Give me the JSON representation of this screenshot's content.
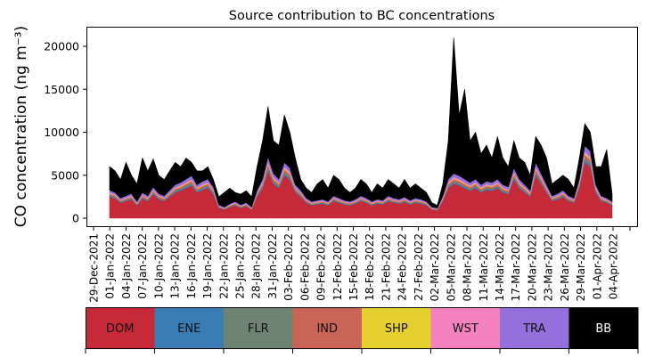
{
  "chart_data": {
    "type": "area",
    "stacked": true,
    "title": "Source contribution to BC concentrations",
    "ylabel": "CO concentration (ng m⁻³)",
    "xlabel": "",
    "ylim": [
      -1000,
      22500
    ],
    "yticks": [
      0,
      5000,
      10000,
      15000,
      20000
    ],
    "x_start_date": "01-Jan-2022",
    "x_end_date": "03-Apr-2022",
    "x_resolution": "daily",
    "xtick_labels": [
      "29-Dec-2021",
      "01-Jan-2022",
      "04-Jan-2022",
      "07-Jan-2022",
      "10-Jan-2022",
      "13-Jan-2022",
      "16-Jan-2022",
      "19-Jan-2022",
      "22-Jan-2022",
      "25-Jan-2022",
      "28-Jan-2022",
      "31-Jan-2022",
      "03-Feb-2022",
      "06-Feb-2022",
      "09-Feb-2022",
      "12-Feb-2022",
      "15-Feb-2022",
      "18-Feb-2022",
      "21-Feb-2022",
      "24-Feb-2022",
      "27-Feb-2022",
      "02-Mar-2022",
      "05-Mar-2022",
      "08-Mar-2022",
      "11-Mar-2022",
      "14-Mar-2022",
      "17-Mar-2022",
      "20-Mar-2022",
      "23-Mar-2022",
      "26-Mar-2022",
      "29-Mar-2022",
      "01-Apr-2022",
      "04-Apr-2022"
    ],
    "grid": false,
    "legend_placement": "bottom colorbar",
    "series": [
      {
        "name": "DOM",
        "color": "#c62a39",
        "values": [
          2500,
          2300,
          1800,
          2000,
          2200,
          1500,
          2300,
          2000,
          2800,
          2200,
          2000,
          2500,
          3000,
          3200,
          3500,
          3800,
          3000,
          3300,
          3500,
          2800,
          1200,
          1000,
          1300,
          1500,
          1200,
          1400,
          1000,
          2500,
          3500,
          5500,
          4000,
          3500,
          5000,
          4500,
          3000,
          2500,
          1800,
          1500,
          1600,
          1700,
          1500,
          2000,
          1800,
          1600,
          1500,
          1700,
          2000,
          1800,
          1500,
          1700,
          1600,
          2000,
          1800,
          1700,
          1900,
          1600,
          1800,
          1700,
          1500,
          1000,
          900,
          2000,
          3500,
          4000,
          3800,
          3500,
          3200,
          3500,
          3000,
          3300,
          3200,
          3500,
          3000,
          2800,
          4500,
          3500,
          3000,
          2500,
          5000,
          4000,
          3000,
          2000,
          2200,
          2500,
          2000,
          1800,
          3500,
          6500,
          6000,
          3000,
          2000,
          1800,
          1500
        ]
      },
      {
        "name": "ENE",
        "color": "#3a7cb4",
        "values": [
          100,
          92,
          72,
          80,
          88,
          60,
          92,
          80,
          112,
          88,
          80,
          100,
          120,
          128,
          140,
          152,
          120,
          132,
          140,
          112,
          48,
          40,
          52,
          60,
          48,
          56,
          40,
          100,
          140,
          220,
          160,
          140,
          200,
          180,
          120,
          100,
          72,
          60,
          64,
          68,
          60,
          80,
          72,
          64,
          60,
          68,
          80,
          72,
          60,
          68,
          64,
          80,
          72,
          68,
          76,
          64,
          72,
          68,
          60,
          40,
          36,
          80,
          140,
          160,
          152,
          140,
          128,
          140,
          120,
          132,
          128,
          140,
          120,
          112,
          180,
          140,
          120,
          100,
          200,
          160,
          120,
          80,
          88,
          100,
          80,
          72,
          140,
          260,
          240,
          120,
          80,
          72,
          60
        ]
      },
      {
        "name": "FLR",
        "color": "#6f8373",
        "values": [
          100,
          92,
          72,
          80,
          88,
          60,
          92,
          80,
          112,
          88,
          80,
          100,
          120,
          128,
          140,
          152,
          120,
          132,
          140,
          112,
          48,
          40,
          52,
          60,
          48,
          56,
          40,
          100,
          140,
          220,
          160,
          140,
          200,
          180,
          120,
          100,
          72,
          60,
          64,
          68,
          60,
          80,
          72,
          64,
          60,
          68,
          80,
          72,
          60,
          68,
          64,
          80,
          72,
          68,
          76,
          64,
          72,
          68,
          60,
          40,
          36,
          80,
          140,
          160,
          152,
          140,
          128,
          140,
          120,
          132,
          128,
          140,
          120,
          112,
          180,
          140,
          120,
          100,
          200,
          160,
          120,
          80,
          88,
          100,
          80,
          72,
          140,
          260,
          240,
          120,
          80,
          72,
          60
        ]
      },
      {
        "name": "IND",
        "color": "#c96556",
        "values": [
          150,
          138,
          108,
          120,
          132,
          90,
          138,
          120,
          168,
          132,
          120,
          150,
          180,
          192,
          210,
          228,
          180,
          198,
          210,
          168,
          72,
          60,
          78,
          90,
          72,
          84,
          60,
          150,
          210,
          330,
          240,
          210,
          300,
          270,
          180,
          150,
          108,
          90,
          96,
          102,
          90,
          120,
          108,
          96,
          90,
          102,
          120,
          108,
          90,
          102,
          96,
          120,
          108,
          102,
          114,
          96,
          108,
          102,
          90,
          60,
          54,
          120,
          210,
          240,
          228,
          210,
          192,
          210,
          180,
          198,
          192,
          210,
          180,
          168,
          270,
          210,
          180,
          150,
          300,
          240,
          180,
          120,
          132,
          150,
          120,
          108,
          210,
          390,
          360,
          180,
          120,
          108,
          90
        ]
      },
      {
        "name": "SHP",
        "color": "#e6d030",
        "values": [
          50,
          46,
          36,
          40,
          44,
          30,
          46,
          40,
          56,
          44,
          40,
          50,
          60,
          64,
          70,
          76,
          60,
          66,
          70,
          56,
          24,
          20,
          26,
          30,
          24,
          28,
          20,
          50,
          70,
          110,
          80,
          70,
          100,
          90,
          60,
          50,
          36,
          30,
          32,
          34,
          30,
          40,
          36,
          32,
          30,
          34,
          40,
          36,
          30,
          34,
          32,
          40,
          36,
          34,
          38,
          32,
          36,
          34,
          30,
          20,
          18,
          40,
          70,
          80,
          76,
          70,
          64,
          70,
          60,
          66,
          64,
          70,
          60,
          56,
          90,
          70,
          60,
          50,
          100,
          80,
          60,
          40,
          44,
          50,
          40,
          36,
          70,
          130,
          120,
          60,
          40,
          36,
          30
        ]
      },
      {
        "name": "WST",
        "color": "#f481c0",
        "values": [
          100,
          92,
          72,
          80,
          88,
          60,
          92,
          80,
          112,
          88,
          80,
          100,
          120,
          128,
          140,
          152,
          120,
          132,
          140,
          112,
          48,
          40,
          52,
          60,
          48,
          56,
          40,
          100,
          140,
          220,
          160,
          140,
          200,
          180,
          120,
          100,
          72,
          60,
          64,
          68,
          60,
          80,
          72,
          64,
          60,
          68,
          80,
          72,
          60,
          68,
          64,
          80,
          72,
          68,
          76,
          64,
          72,
          68,
          60,
          40,
          36,
          80,
          140,
          160,
          152,
          140,
          128,
          140,
          120,
          132,
          128,
          140,
          120,
          112,
          180,
          140,
          120,
          100,
          200,
          160,
          120,
          80,
          88,
          100,
          80,
          72,
          140,
          260,
          240,
          120,
          80,
          72,
          60
        ]
      },
      {
        "name": "TRA",
        "color": "#9370db",
        "values": [
          250,
          230,
          180,
          200,
          220,
          150,
          230,
          200,
          280,
          220,
          200,
          250,
          300,
          320,
          350,
          380,
          300,
          330,
          350,
          280,
          120,
          100,
          130,
          150,
          120,
          140,
          100,
          250,
          350,
          550,
          400,
          350,
          500,
          450,
          300,
          250,
          180,
          150,
          160,
          170,
          150,
          200,
          180,
          160,
          150,
          170,
          200,
          180,
          150,
          170,
          160,
          200,
          180,
          170,
          190,
          160,
          180,
          170,
          150,
          100,
          90,
          200,
          350,
          400,
          380,
          350,
          320,
          350,
          300,
          330,
          320,
          350,
          300,
          280,
          450,
          350,
          300,
          250,
          500,
          400,
          300,
          200,
          220,
          250,
          200,
          180,
          350,
          650,
          600,
          300,
          200,
          180,
          150
        ]
      },
      {
        "name": "BB",
        "color": "#000000",
        "values": [
          2750,
          2510,
          2160,
          3900,
          2140,
          2050,
          4010,
          2900,
          3260,
          2140,
          1900,
          2250,
          2600,
          1840,
          2450,
          1560,
          1600,
          1210,
          1450,
          860,
          940,
          1700,
          1810,
          1050,
          1240,
          1380,
          1200,
          2750,
          4450,
          5850,
          3800,
          3950,
          5500,
          4150,
          3100,
          1250,
          1160,
          1050,
          1920,
          2290,
          1550,
          2400,
          2160,
          1420,
          1050,
          1290,
          1900,
          1660,
          1050,
          1790,
          1420,
          1900,
          1660,
          1290,
          2030,
          1420,
          1660,
          1290,
          1050,
          500,
          330,
          1400,
          4450,
          15800,
          7060,
          10450,
          4840,
          5450,
          3600,
          4210,
          2840,
          4950,
          3100,
          2360,
          3150,
          2450,
          2600,
          1750,
          3000,
          3300,
          3100,
          1400,
          1640,
          1750,
          1900,
          1160,
          2450,
          2550,
          2200,
          2100,
          3400,
          5660,
          850
        ]
      }
    ]
  }
}
